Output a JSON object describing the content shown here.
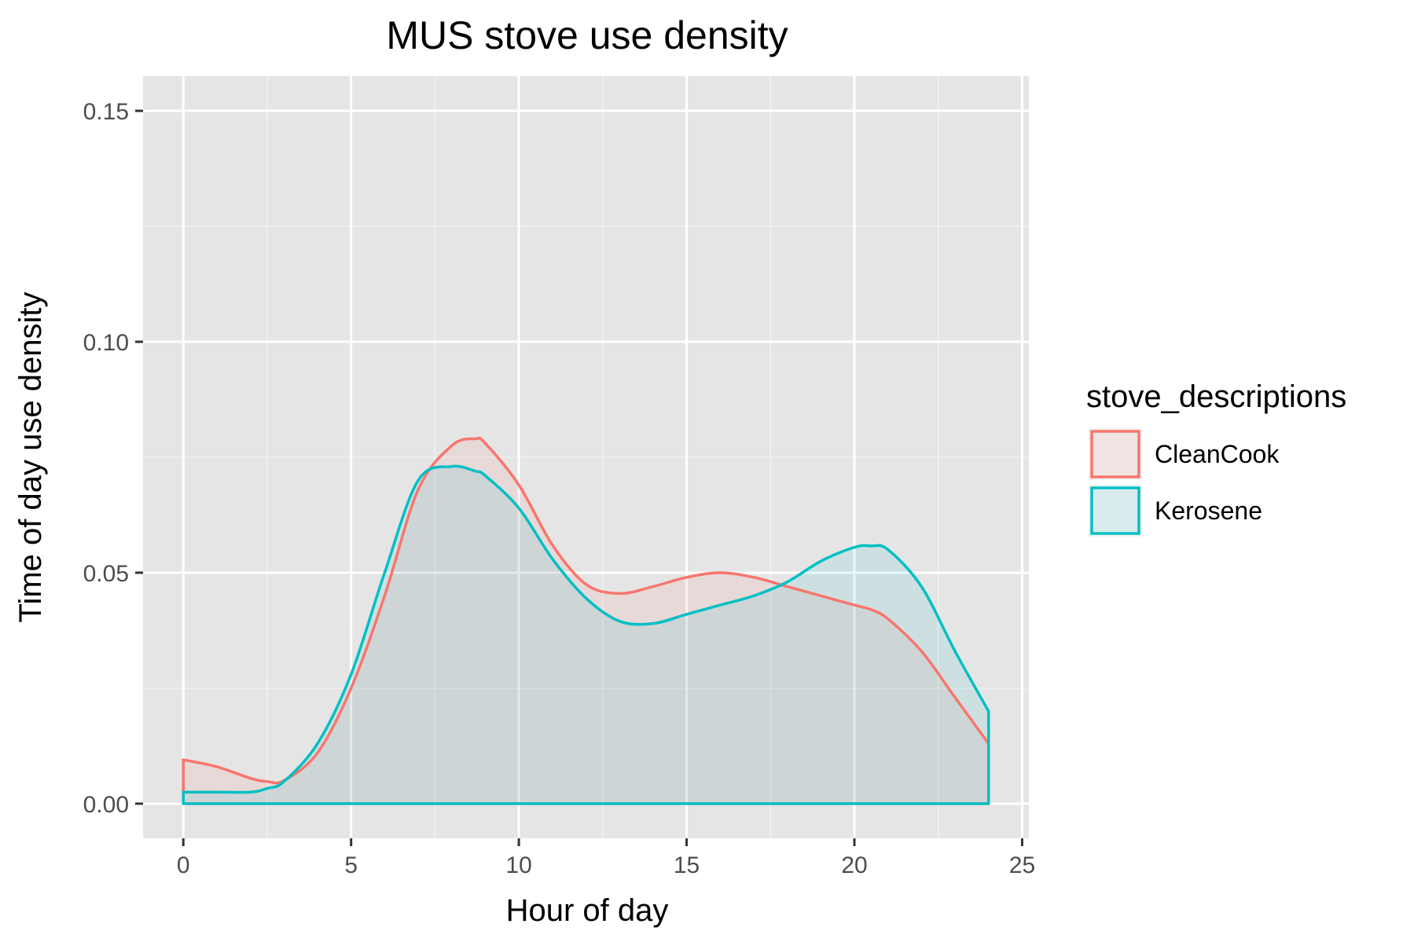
{
  "chart_data": {
    "type": "area",
    "title": "MUS stove use density",
    "xlabel": "Hour of day",
    "ylabel": "Time of day use density",
    "xlim": [
      -1.2,
      25.2
    ],
    "ylim": [
      -0.0075,
      0.1575
    ],
    "x_ticks": [
      0,
      5,
      10,
      15,
      20,
      25
    ],
    "x_tick_labels": [
      "0",
      "5",
      "10",
      "15",
      "20",
      "25"
    ],
    "y_ticks": [
      0,
      0.05,
      0.1,
      0.15
    ],
    "y_tick_labels": [
      "0.00",
      "0.05",
      "0.10",
      "0.15"
    ],
    "grid": true,
    "panel_background": "#e5e5e5",
    "legend": {
      "title": "stove_descriptions",
      "placement": "right"
    },
    "x": [
      0,
      1,
      2,
      2.5,
      3,
      4,
      5,
      6,
      7,
      8,
      8.7,
      9,
      10,
      11,
      12,
      13,
      14,
      15,
      16,
      17,
      18,
      19,
      20,
      20.5,
      21,
      22,
      23,
      24
    ],
    "series": [
      {
        "name": "CleanCook",
        "color": "#f8766d",
        "fill": "rgba(248,118,109,0.1)",
        "values": [
          0.0095,
          0.008,
          0.0055,
          0.0048,
          0.005,
          0.011,
          0.025,
          0.045,
          0.068,
          0.0775,
          0.079,
          0.078,
          0.069,
          0.056,
          0.0475,
          0.0455,
          0.047,
          0.049,
          0.05,
          0.049,
          0.047,
          0.045,
          0.043,
          0.042,
          0.04,
          0.033,
          0.023,
          0.013
        ]
      },
      {
        "name": "Kerosene",
        "color": "#00bfc4",
        "fill": "rgba(0,191,196,0.1)",
        "values": [
          0.0025,
          0.0025,
          0.0025,
          0.0033,
          0.0048,
          0.013,
          0.028,
          0.05,
          0.07,
          0.073,
          0.072,
          0.071,
          0.064,
          0.053,
          0.0445,
          0.0395,
          0.039,
          0.041,
          0.043,
          0.045,
          0.048,
          0.0525,
          0.0555,
          0.0558,
          0.055,
          0.047,
          0.033,
          0.02
        ]
      }
    ]
  }
}
